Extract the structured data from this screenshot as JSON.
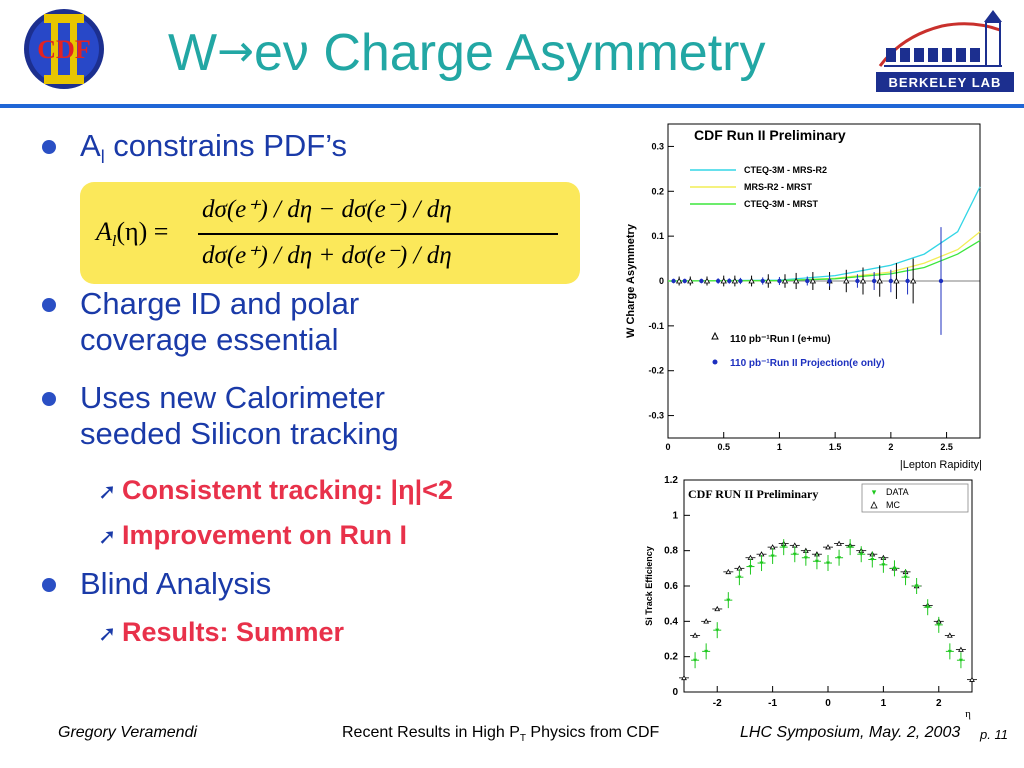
{
  "header": {
    "title_pre": "W",
    "title_arrow": "→",
    "title_mid": "eν",
    "title_post": " Charge Asymmetry",
    "cdf_logo_text": "CDF",
    "lab_logo_text": "BERKELEY LAB"
  },
  "colors": {
    "title": "#22a7a4",
    "bullet_text": "#1a3aa8",
    "sub_bullet_text": "#e8314a",
    "rule": "#1f66d6",
    "formula_bg": "#fbe85a"
  },
  "bullets": [
    {
      "main": "A",
      "sub": "l",
      "rest": " constrains PDF’s"
    },
    {
      "line1": "Charge ID and polar",
      "line2": "coverage essential"
    },
    {
      "line1": "Uses new Calorimeter",
      "line2": "seeded Silicon tracking"
    },
    {
      "main": "Blind Analysis"
    }
  ],
  "sub_bullets": [
    {
      "text": "Consistent tracking: |η|<2"
    },
    {
      "text": "Improvement on Run I"
    },
    {
      "text": "Results: Summer"
    }
  ],
  "formula": {
    "lhs": "A",
    "lhs_sub": "l",
    "lhs_arg": "(η) =",
    "numerator": "dσ(e⁺) / dη − dσ(e⁻) / dη",
    "denominator": "dσ(e⁺) / dη + dσ(e⁻) / dη"
  },
  "chart_data": [
    {
      "type": "line",
      "title": "CDF Run II Preliminary",
      "xlabel": "|Lepton Rapidity|",
      "ylabel": "W Charge Asymmetry",
      "xlim": [
        0,
        2.8
      ],
      "ylim": [
        -0.35,
        0.35
      ],
      "xticks": [
        "0",
        "0.5",
        "1",
        "1.5",
        "2",
        "2.5"
      ],
      "yticks": [
        "0.3",
        "0.2",
        "0.1",
        "0",
        "-0.1",
        "-0.2",
        "-0.3"
      ],
      "legend": [
        "CTEQ-3M - MRS-R2",
        "MRS-R2 - MRST",
        "CTEQ-3M - MRST"
      ],
      "legend_colors": [
        "#33d6e6",
        "#f2ee55",
        "#3ce63c"
      ],
      "curves": [
        {
          "x": [
            0,
            1.0,
            1.5,
            2.0,
            2.3,
            2.6,
            2.8
          ],
          "y": [
            0,
            0.002,
            0.012,
            0.035,
            0.06,
            0.11,
            0.21
          ]
        },
        {
          "x": [
            0,
            1.0,
            1.5,
            2.0,
            2.3,
            2.6,
            2.8
          ],
          "y": [
            0,
            0.001,
            0.006,
            0.02,
            0.04,
            0.07,
            0.11
          ]
        },
        {
          "x": [
            0,
            1.0,
            1.5,
            2.0,
            2.3,
            2.6,
            2.8
          ],
          "y": [
            0,
            0.001,
            0.005,
            0.016,
            0.03,
            0.06,
            0.09
          ]
        }
      ],
      "markers_legend": [
        "110 pb⁻¹Run I (e+mu)",
        "110 pb⁻¹Run II Projection(e only)"
      ],
      "markers_label_unit": "-1",
      "run1_x": [
        0.1,
        0.2,
        0.35,
        0.5,
        0.6,
        0.75,
        0.9,
        1.05,
        1.15,
        1.3,
        1.45,
        1.6,
        1.75,
        1.9,
        2.05,
        2.2
      ],
      "run1_err": [
        0.01,
        0.01,
        0.01,
        0.012,
        0.012,
        0.012,
        0.015,
        0.015,
        0.018,
        0.02,
        0.02,
        0.025,
        0.03,
        0.035,
        0.04,
        0.05
      ],
      "run2_x": [
        0.05,
        0.15,
        0.3,
        0.45,
        0.55,
        0.65,
        0.85,
        1.0,
        1.25,
        1.45,
        1.7,
        1.85,
        2.0,
        2.15,
        2.45
      ],
      "run2_err": [
        0.005,
        0.005,
        0.005,
        0.006,
        0.006,
        0.007,
        0.008,
        0.009,
        0.01,
        0.012,
        0.015,
        0.02,
        0.025,
        0.03,
        0.12
      ]
    },
    {
      "type": "scatter",
      "title": "CDF RUN II Preliminary",
      "xlabel": "η",
      "ylabel": "Si Track Efficiency",
      "xlim": [
        -2.6,
        2.6
      ],
      "ylim": [
        0,
        1.2
      ],
      "xticks": [
        "-2",
        "-1",
        "0",
        "1",
        "2"
      ],
      "yticks": [
        "1.2",
        "1",
        "0.8",
        "0.6",
        "0.4",
        "0.2",
        "0"
      ],
      "legend": [
        "DATA",
        "MC"
      ],
      "series": [
        {
          "name": "DATA",
          "x": [
            -2.4,
            -2.2,
            -2.0,
            -1.8,
            -1.6,
            -1.4,
            -1.2,
            -1.0,
            -0.8,
            -0.6,
            -0.4,
            -0.2,
            0.0,
            0.2,
            0.4,
            0.6,
            0.8,
            1.0,
            1.2,
            1.4,
            1.6,
            1.8,
            2.0,
            2.2,
            2.4
          ],
          "y": [
            0.18,
            0.23,
            0.35,
            0.52,
            0.65,
            0.71,
            0.73,
            0.77,
            0.82,
            0.78,
            0.76,
            0.74,
            0.73,
            0.76,
            0.82,
            0.78,
            0.75,
            0.72,
            0.7,
            0.65,
            0.6,
            0.48,
            0.38,
            0.23,
            0.18
          ]
        },
        {
          "name": "MC",
          "x": [
            -2.6,
            -2.4,
            -2.2,
            -2.0,
            -1.8,
            -1.6,
            -1.4,
            -1.2,
            -1.0,
            -0.8,
            -0.6,
            -0.4,
            -0.2,
            0.0,
            0.2,
            0.4,
            0.6,
            0.8,
            1.0,
            1.2,
            1.4,
            1.6,
            1.8,
            2.0,
            2.2,
            2.4,
            2.6
          ],
          "y": [
            0.08,
            0.32,
            0.4,
            0.47,
            0.68,
            0.7,
            0.76,
            0.78,
            0.82,
            0.84,
            0.83,
            0.8,
            0.78,
            0.82,
            0.84,
            0.83,
            0.8,
            0.78,
            0.76,
            0.7,
            0.68,
            0.6,
            0.49,
            0.4,
            0.32,
            0.24,
            0.07
          ]
        }
      ]
    }
  ],
  "footer": {
    "author": "Gregory Veramendi",
    "talk_pre": "Recent Results in High P",
    "talk_sub": "T",
    "talk_post": " Physics from CDF",
    "event": "LHC Symposium, May. 2, 2003",
    "page": "p. 11"
  }
}
